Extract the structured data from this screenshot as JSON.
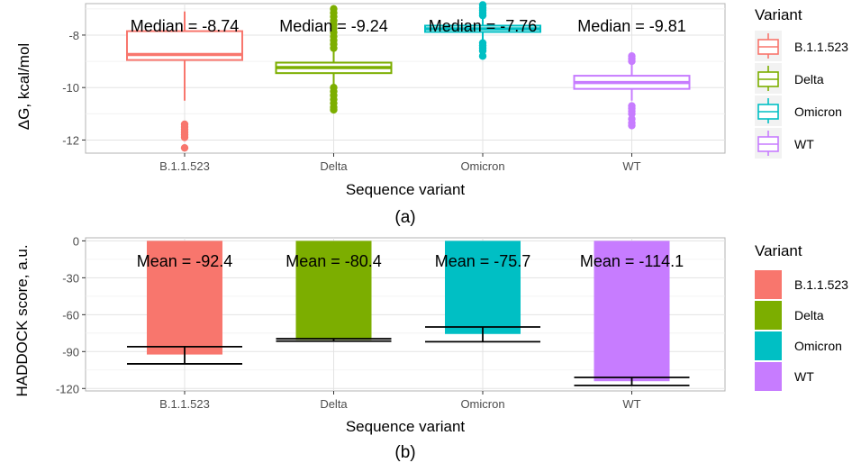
{
  "chart_data": [
    {
      "type": "box",
      "caption": "(a)",
      "xlabel": "Sequence variant",
      "ylabel": "ΔG, kcal/mol",
      "ylim": [
        -12.5,
        -6.8
      ],
      "yticks": [
        -8,
        -10,
        -12
      ],
      "categories": [
        "B.1.1.523",
        "Delta",
        "Omicron",
        "WT"
      ],
      "colors": [
        "#F8766D",
        "#7CAE00",
        "#00BFC4",
        "#C77CFF"
      ],
      "legend": {
        "title": "Variant",
        "position": "right",
        "entries": [
          "B.1.1.523",
          "Delta",
          "Omicron",
          "WT"
        ]
      },
      "grid": true,
      "boxes": [
        {
          "category": "B.1.1.523",
          "median": -8.74,
          "q1": -8.95,
          "q3": -7.85,
          "whisker_low": -10.5,
          "whisker_high": -7.1,
          "outliers": [
            -11.4,
            -11.5,
            -11.6,
            -11.7,
            -11.8,
            -11.9,
            -12.3
          ],
          "annotation": "Median = -8.74"
        },
        {
          "category": "Delta",
          "median": -9.24,
          "q1": -9.45,
          "q3": -9.05,
          "whisker_low": -9.95,
          "whisker_high": -8.55,
          "outliers": [
            -7.0,
            -7.15,
            -7.3,
            -7.45,
            -7.6,
            -7.75,
            -7.9,
            -8.05,
            -8.2,
            -8.35,
            -8.5,
            -10.0,
            -10.15,
            -10.3,
            -10.45,
            -10.6,
            -10.75,
            -10.85
          ],
          "annotation": "Median = -9.24"
        },
        {
          "category": "Omicron",
          "median": -7.76,
          "q1": -7.88,
          "q3": -7.64,
          "whisker_low": -8.2,
          "whisker_high": -7.3,
          "outliers": [
            -6.85,
            -6.95,
            -7.05,
            -7.15,
            -7.25,
            -8.3,
            -8.4,
            -8.5,
            -8.6,
            -8.8
          ],
          "annotation": "Median = -7.76"
        },
        {
          "category": "WT",
          "median": -9.81,
          "q1": -10.05,
          "q3": -9.55,
          "whisker_low": -10.5,
          "whisker_high": -9.1,
          "outliers": [
            -8.8,
            -8.9,
            -9.0,
            -10.7,
            -10.8,
            -10.9,
            -11.0,
            -11.2,
            -11.35,
            -11.45
          ],
          "annotation": "Median = -9.81"
        }
      ]
    },
    {
      "type": "bar",
      "caption": "(b)",
      "xlabel": "Sequence variant",
      "ylabel": "HADDOCK score, a.u.",
      "ylim": [
        -122,
        2.5
      ],
      "yticks": [
        0,
        -30,
        -60,
        -90,
        -120
      ],
      "categories": [
        "B.1.1.523",
        "Delta",
        "Omicron",
        "WT"
      ],
      "values": [
        -92.4,
        -80.4,
        -75.7,
        -114.1
      ],
      "error_low": [
        -100,
        -81.5,
        -82,
        -117.5
      ],
      "error_high": [
        -86,
        -79.5,
        -70,
        -111
      ],
      "colors": [
        "#F8766D",
        "#7CAE00",
        "#00BFC4",
        "#C77CFF"
      ],
      "annotations": [
        "Mean = -92.4",
        "Mean = -80.4",
        "Mean = -75.7",
        "Mean = -114.1"
      ],
      "legend": {
        "title": "Variant",
        "position": "right",
        "entries": [
          "B.1.1.523",
          "Delta",
          "Omicron",
          "WT"
        ]
      },
      "grid": true
    }
  ]
}
